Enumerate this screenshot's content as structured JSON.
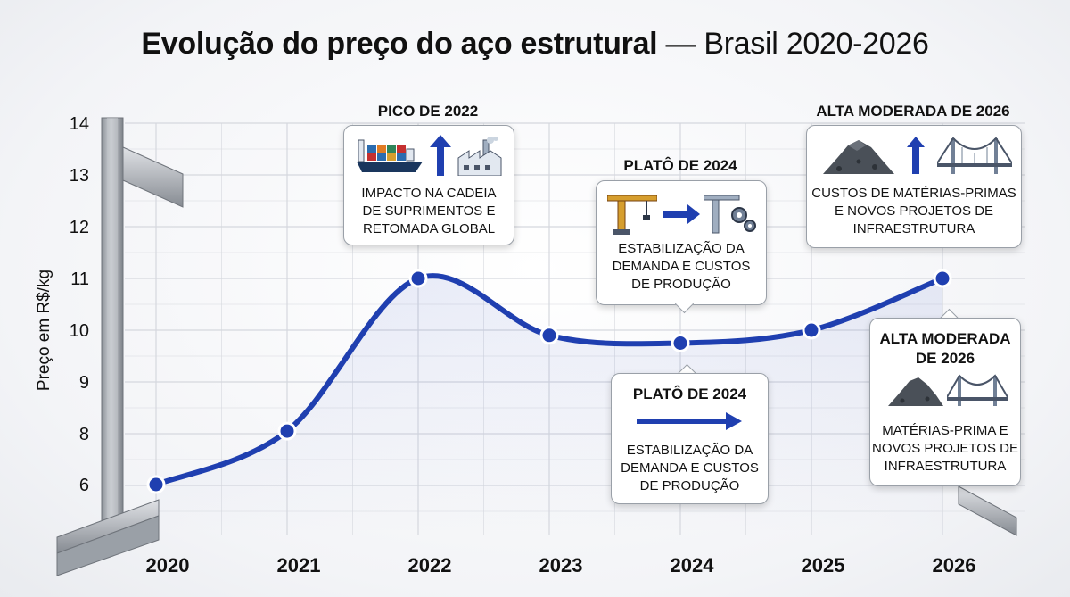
{
  "title": {
    "main": "Evolução do preço do aço estrutural",
    "sub": "— Brasil 2020-2026"
  },
  "chart_data": {
    "type": "line",
    "x": [
      "2020",
      "2021",
      "2022",
      "2023",
      "2024",
      "2025",
      "2026"
    ],
    "values": [
      6.0,
      8.05,
      11.0,
      9.9,
      9.75,
      10.0,
      11.0
    ],
    "ylabel": "Preço em R$/kg",
    "xlabel": "",
    "yticks": [
      "6",
      "8",
      "9",
      "10",
      "11",
      "12",
      "13",
      "14"
    ],
    "ylim": [
      6,
      14
    ],
    "grid": true,
    "line_color": "#1f3fb0",
    "annotations": [
      {
        "title": "PICO DE 2022",
        "text": [
          "IMPACTO NA CADEIA",
          "DE SUPRIMENTOS E",
          "RETOMADA GLOBAL"
        ]
      },
      {
        "title": "PLATÔ DE 2024",
        "text": [
          "ESTABILIZAÇÃO DA",
          "DEMANDA E CUSTOS",
          "DE PRODUÇÃO"
        ]
      },
      {
        "title": "PLATÔ DE 2024",
        "text": [
          "ESTABILIZAÇÃO DA",
          "DEMANDA E CUSTOS",
          "DE PRODUÇÃO"
        ]
      },
      {
        "title": "ALTA MODERADA DE 2026",
        "text": [
          "CUSTOS DE MATÉRIAS-PRIMAS",
          "E NOVOS PROJETOS DE",
          "INFRAESTRUTURA"
        ]
      },
      {
        "title": [
          "ALTA MODERADA",
          "DE 2026"
        ],
        "text": [
          "MATÉRIAS-PRIMA E",
          "NOVOS PROJETOS DE",
          "INFRAESTRUTURA"
        ]
      }
    ]
  },
  "colors": {
    "line": "#1f3fb0",
    "point": "#1f3fb0",
    "arrow": "#1f3fb0",
    "grid": "#d5d8de"
  },
  "icons": [
    "cargo-ship-icon",
    "up-arrow-icon",
    "factory-icon",
    "crane-icon",
    "right-arrow-icon",
    "crane-gear-icon",
    "ore-pile-icon",
    "bridge-icon",
    "steel-beam-icon"
  ]
}
